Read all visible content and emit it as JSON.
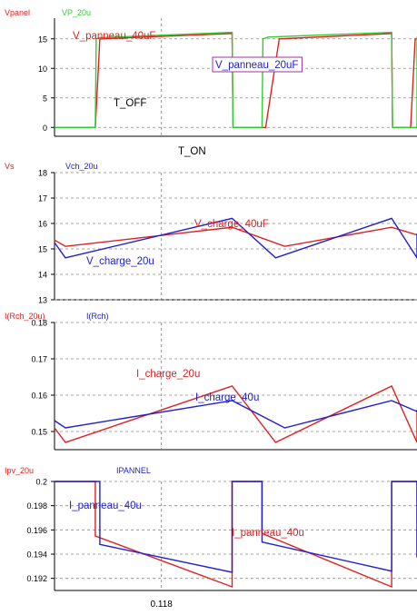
{
  "colors": {
    "red": "#e02020",
    "green": "#33cc33",
    "blue": "#2020d0",
    "purple": "#a030a0",
    "grid": "#8a8a8a",
    "axis": "#000000",
    "cursor": "#888888"
  },
  "cursor": {
    "x": 0.118,
    "label": "0.118"
  },
  "chart_data": [
    {
      "type": "line",
      "legend": [
        "Vpanel",
        "VP_20u"
      ],
      "ylim": [
        -1.5,
        18.5
      ],
      "yticks": [
        0,
        5,
        10,
        15
      ],
      "grid": true,
      "series": [
        {
          "name": "Vpanel",
          "color": "red",
          "x": [
            0.0,
            0.045,
            0.05,
            0.196,
            0.197,
            0.218,
            0.223,
            0.233,
            0.248,
            0.372,
            0.373,
            0.393,
            0.398,
            0.4
          ],
          "y": [
            0,
            0,
            15.0,
            15.9,
            0,
            0,
            0,
            0,
            15.0,
            15.9,
            0,
            0,
            15.0,
            15.05
          ]
        },
        {
          "name": "VP_20u",
          "color": "green",
          "x": [
            0.0,
            0.045,
            0.046,
            0.05,
            0.196,
            0.197,
            0.229,
            0.23,
            0.236,
            0.372,
            0.373,
            0.405,
            0.406,
            0.412,
            0.4
          ],
          "y": [
            0,
            0,
            15.0,
            15.2,
            16.1,
            0,
            0,
            15.0,
            15.3,
            16.1,
            0,
            0,
            15.0,
            15.3,
            15.3
          ]
        }
      ],
      "annotations": [
        {
          "text": "V_panneau_40uF",
          "color": "red",
          "boxed": false
        },
        {
          "text": "V_panneau_20uF",
          "color": "blue",
          "boxed": true
        },
        {
          "text": "T_OFF",
          "color": "axis",
          "boxed": false
        },
        {
          "text": "T_ON",
          "color": "axis",
          "boxed": false
        }
      ]
    },
    {
      "type": "line",
      "legend": [
        "Vs",
        "Vch_20u"
      ],
      "ylim": [
        13,
        18
      ],
      "yticks": [
        13,
        14,
        15,
        16,
        17,
        18
      ],
      "grid": true,
      "series": [
        {
          "name": "Vs",
          "color": "red",
          "x": [
            0.0,
            0.012,
            0.196,
            0.254,
            0.372,
            0.4
          ],
          "y": [
            15.35,
            15.1,
            15.85,
            15.1,
            15.85,
            15.55
          ]
        },
        {
          "name": "Vch_20u",
          "color": "blue",
          "x": [
            0.0,
            0.012,
            0.196,
            0.244,
            0.372,
            0.42,
            0.4
          ],
          "y": [
            15.25,
            14.65,
            16.2,
            14.65,
            16.2,
            14.65,
            15.6
          ]
        }
      ],
      "annotations": [
        {
          "text": "V_charge_40uF",
          "color": "red"
        },
        {
          "text": "V_charge_20u",
          "color": "blue"
        }
      ]
    },
    {
      "type": "line",
      "legend": [
        "I(Rch_20u)",
        "I(Rch)"
      ],
      "ylim": [
        0.145,
        0.18
      ],
      "yticks": [
        0.15,
        0.16,
        0.17,
        0.18
      ],
      "grid": true,
      "series": [
        {
          "name": "I(Rch_20u)",
          "color": "red",
          "x": [
            0.0,
            0.012,
            0.196,
            0.244,
            0.372,
            0.42,
            0.4
          ],
          "y": [
            0.151,
            0.147,
            0.1625,
            0.147,
            0.1625,
            0.147,
            0.156
          ]
        },
        {
          "name": "I(Rch)",
          "color": "blue",
          "x": [
            0.0,
            0.012,
            0.196,
            0.254,
            0.372,
            0.4
          ],
          "y": [
            0.153,
            0.151,
            0.1585,
            0.151,
            0.1585,
            0.1555
          ]
        }
      ],
      "annotations": [
        {
          "text": "I_charge_20u",
          "color": "red"
        },
        {
          "text": "I_charge_40u",
          "color": "blue"
        }
      ]
    },
    {
      "type": "line",
      "legend": [
        "Ipv_20u",
        "IPANNEL"
      ],
      "ylim": [
        0.191,
        0.2
      ],
      "yticks": [
        0.192,
        0.194,
        0.196,
        0.198,
        0.2
      ],
      "grid": true,
      "series": [
        {
          "name": "Ipv_20u",
          "color": "red",
          "x": [
            0.0,
            0.0,
            0.045,
            0.045,
            0.196,
            0.196,
            0.229,
            0.229,
            0.372,
            0.372,
            0.405,
            0.405,
            0.4
          ],
          "y": [
            0.2,
            0.2,
            0.2,
            0.1955,
            0.1913,
            0.2,
            0.2,
            0.1957,
            0.1913,
            0.2,
            0.2,
            0.1957,
            0.1937
          ]
        },
        {
          "name": "IPANNEL",
          "color": "blue",
          "x": [
            0.0,
            0.0,
            0.05,
            0.05,
            0.196,
            0.196,
            0.229,
            0.229,
            0.372,
            0.372,
            0.405,
            0.405,
            0.4
          ],
          "y": [
            0.2,
            0.2,
            0.2,
            0.1948,
            0.1925,
            0.2,
            0.2,
            0.195,
            0.1926,
            0.2,
            0.2,
            0.195,
            0.1938
          ]
        }
      ],
      "annotations": [
        {
          "text": "I_panneau_40u",
          "color": "blue"
        },
        {
          "text": "I_panneau_40u",
          "color": "red"
        }
      ]
    }
  ]
}
